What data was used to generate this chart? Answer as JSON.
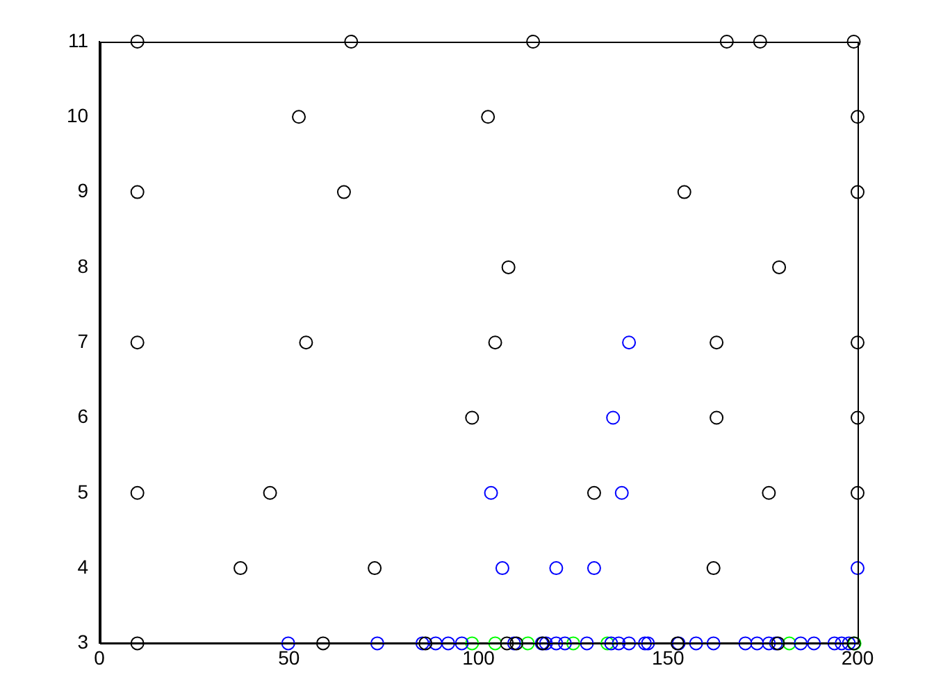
{
  "chart_data": {
    "type": "scatter",
    "marker": "circle",
    "grid": false,
    "legend": false,
    "xlim": [
      0,
      200
    ],
    "xticks": [
      0,
      50,
      100,
      150,
      200
    ],
    "ylim": [
      3,
      11
    ],
    "yticks": [
      3,
      4,
      5,
      6,
      7,
      8,
      9,
      10,
      11
    ],
    "series": [
      {
        "color": "#000000",
        "x": [
          10,
          66.4,
          114.4,
          165.5,
          174.3,
          199,
          52.6,
          102.5,
          200,
          10,
          64.5,
          154.3,
          200,
          107.9,
          179.3,
          10,
          54.5,
          104.4,
          162.8,
          200,
          98.3,
          162.8,
          200,
          10,
          45,
          130.5,
          176.6,
          200,
          37.2,
          72.6,
          162,
          10,
          59,
          86,
          107.5,
          110,
          117,
          152.5,
          179,
          199
        ],
        "values": [
          11,
          11,
          11,
          11,
          11,
          11,
          10,
          10,
          10,
          9,
          9,
          9,
          9,
          8,
          8,
          7,
          7,
          7,
          7,
          7,
          6,
          6,
          6,
          5,
          5,
          5,
          5,
          5,
          4,
          4,
          4,
          3,
          3,
          3,
          3,
          3,
          3,
          3,
          3,
          3
        ]
      },
      {
        "color": "#0000ff",
        "x": [
          139.7,
          135.5,
          103.3,
          137.8,
          106.3,
          120.5,
          130.5,
          200,
          49.8,
          73.3,
          85.2,
          88.7,
          92,
          95.6,
          109.4,
          116.7,
          117.8,
          120.5,
          122.8,
          128.6,
          135,
          137,
          139.7,
          143.9,
          144.7,
          152.8,
          157.4,
          162,
          170.4,
          173.5,
          176.6,
          178.5,
          185,
          188.5,
          193.9,
          195.8,
          197.7
        ],
        "values": [
          7,
          6,
          5,
          5,
          4,
          4,
          4,
          4,
          3,
          3,
          3,
          3,
          3,
          3,
          3,
          3,
          3,
          3,
          3,
          3,
          3,
          3,
          3,
          3,
          3,
          3,
          3,
          3,
          3,
          3,
          3,
          3,
          3,
          3,
          3,
          3,
          3
        ]
      },
      {
        "color": "#00ff00",
        "x": [
          98.3,
          104.4,
          113,
          125,
          134,
          182,
          199.2
        ],
        "values": [
          3,
          3,
          3,
          3,
          3,
          3,
          3
        ]
      }
    ]
  }
}
